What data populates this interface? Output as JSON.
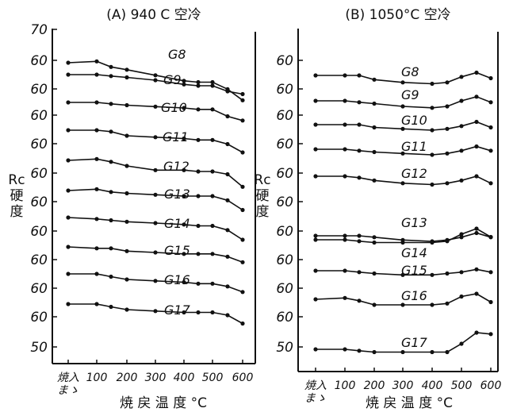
{
  "chart_data": [
    {
      "type": "line",
      "title": "(A) 940 C 空冷",
      "ylabel": "Rc\n硬\n度",
      "xlabel": "焼 戻 温 度 °C",
      "x_categories": [
        "焼入\nまゝ",
        "100",
        "200",
        "300",
        "400",
        "500",
        "600"
      ],
      "x": [
        "焼入まゝ",
        100,
        150,
        200,
        300,
        400,
        450,
        500,
        550,
        600
      ],
      "y_tick_labels": [
        "70",
        "60",
        "60",
        "60",
        "60",
        "60",
        "60",
        "60",
        "60",
        "60",
        "60",
        "50"
      ],
      "series": [
        {
          "name": "G8",
          "values": [
            64.5,
            65,
            63,
            62,
            60,
            58,
            57.5,
            57.5,
            55,
            51
          ]
        },
        {
          "name": "G9",
          "values": [
            63,
            63,
            62.5,
            62,
            61,
            59.5,
            59,
            59,
            57,
            56
          ]
        },
        {
          "name": "G10",
          "values": [
            63.5,
            63.5,
            63,
            62.5,
            62,
            61.5,
            61,
            61,
            58.5,
            57
          ]
        },
        {
          "name": "G11",
          "values": [
            63,
            63,
            62.5,
            61,
            60.5,
            60,
            59.5,
            59.5,
            58,
            55
          ]
        },
        {
          "name": "G12",
          "values": [
            61.5,
            62,
            61,
            59.5,
            58,
            58,
            57.5,
            57.5,
            56.5,
            52
          ]
        },
        {
          "name": "G13",
          "values": [
            62.5,
            63,
            62,
            61.5,
            61,
            60.5,
            60.5,
            60.5,
            59,
            55.5
          ]
        },
        {
          "name": "G14",
          "values": [
            63,
            62.5,
            62,
            61.5,
            61,
            60.5,
            60,
            60,
            58.5,
            55
          ]
        },
        {
          "name": "G15",
          "values": [
            62.5,
            62,
            62,
            61,
            60.5,
            60,
            60,
            60,
            59,
            57
          ]
        },
        {
          "name": "G16",
          "values": [
            61,
            61,
            60,
            59,
            58.5,
            58,
            57.5,
            57.5,
            56.5,
            54.5
          ]
        },
        {
          "name": "G17",
          "values": [
            60,
            60,
            59,
            58,
            57.5,
            57,
            57,
            57,
            56,
            53
          ]
        }
      ]
    },
    {
      "type": "line",
      "title": "(B) 1050°C 空冷",
      "ylabel": "Rc\n硬\n度",
      "xlabel": "焼 戻 温 度 °C",
      "x_categories": [
        "焼入\nまゝ",
        "100",
        "200",
        "300",
        "400",
        "500",
        "600"
      ],
      "x": [
        "焼入まゝ",
        100,
        150,
        200,
        300,
        400,
        450,
        500,
        550,
        600
      ],
      "y_tick_labels": [
        "60",
        "60",
        "60",
        "60",
        "60",
        "60",
        "60",
        "60",
        "60",
        "60",
        "50"
      ],
      "series": [
        {
          "name": "G8",
          "values": [
            63,
            63,
            63,
            61.5,
            60.5,
            60,
            60.5,
            62.5,
            64,
            62
          ]
        },
        {
          "name": "G9",
          "values": [
            61.5,
            61.5,
            61,
            60.5,
            59.5,
            59,
            59.5,
            61.5,
            63,
            61
          ]
        },
        {
          "name": "G10",
          "values": [
            63,
            63,
            63,
            62,
            61.5,
            61,
            61.5,
            62.5,
            64,
            62
          ]
        },
        {
          "name": "G11",
          "values": [
            63,
            63,
            62.5,
            62,
            61.5,
            61,
            61.5,
            62.5,
            64,
            62.5
          ]
        },
        {
          "name": "G12",
          "values": [
            62.5,
            62.5,
            62,
            61,
            60,
            59.5,
            60,
            61,
            62.5,
            60
          ]
        },
        {
          "name": "G13",
          "values": [
            60,
            60,
            59.5,
            59,
            59,
            59,
            59.5,
            62,
            64,
            61
          ]
        },
        {
          "name": "G14",
          "values": [
            59.5,
            59.5,
            59.5,
            59,
            58,
            57.5,
            58,
            59,
            60.5,
            59
          ]
        },
        {
          "name": "G15",
          "values": [
            62,
            62,
            61.5,
            61,
            60.5,
            60.5,
            61,
            61.5,
            62.5,
            61.5
          ]
        },
        {
          "name": "G16",
          "values": [
            57,
            57.5,
            56.5,
            55,
            55,
            55,
            55.5,
            58,
            59,
            56
          ]
        },
        {
          "name": "G17",
          "values": [
            49,
            49,
            48.5,
            48,
            48,
            48,
            48,
            51,
            55,
            54.5
          ]
        }
      ]
    }
  ]
}
